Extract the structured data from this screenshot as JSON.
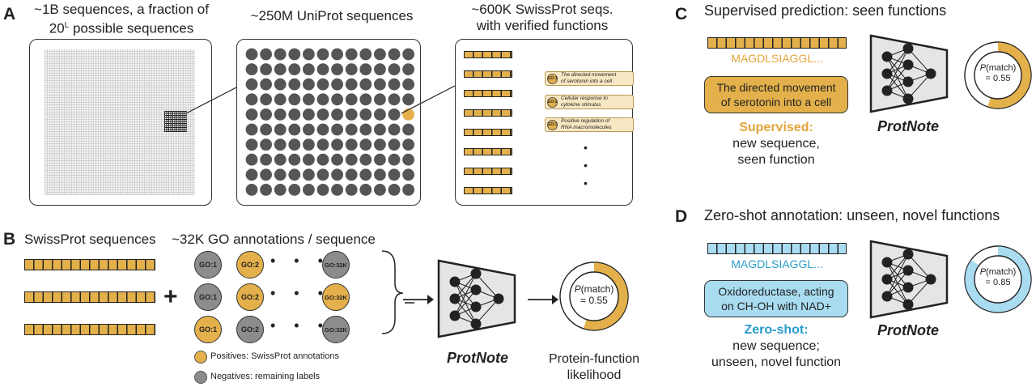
{
  "panel_a": {
    "letter": "A",
    "all_seq_line1": "~1B sequences, a fraction of",
    "all_seq_line2_prefix": "20",
    "all_seq_line2_sup": "L",
    "all_seq_line2_suffix": " possible sequences",
    "uniprot": "~250M UniProt sequences",
    "swissprot_line1": "~600K SwissProt seqs.",
    "swissprot_line2": "with verified functions",
    "go_examples": [
      {
        "id": "GO:1",
        "line1": "The directed movement",
        "line2": "of serotonin into a cell"
      },
      {
        "id": "GO:2",
        "line1": "Cellular response to",
        "line2": "cytokine stimulus"
      },
      {
        "id": "GO:3",
        "line1": "Positive regulation of",
        "line2": "RNA macromolecules"
      }
    ]
  },
  "panel_b": {
    "letter": "B",
    "swissprot_sequences": "SwissProt sequences",
    "go_annotations": "~32K GO annotations / sequence",
    "plus": "+",
    "rows": [
      [
        "GO:1",
        "GO:2",
        "GO:32K"
      ],
      [
        "GO:1",
        "GO:2",
        "GO:32K"
      ],
      [
        "GO:1",
        "GO:2",
        "GO:32K"
      ]
    ],
    "ellipsis": "• • • •",
    "legend_positive": "Positives: SwissProt annotations",
    "legend_negative": "Negatives: remaining labels",
    "model_name": "ProtNote",
    "p_label": "P",
    "p_suffix": "(match)",
    "p_value": "= 0.55",
    "output_line1": "Protein-function",
    "output_line2": "likelihood",
    "colors": {
      "positive": "#e3b04b",
      "negative": "#8c8c8c"
    }
  },
  "panel_c": {
    "letter": "C",
    "title": "Supervised prediction: seen functions",
    "sequence": "MAGDLSIAGGL...",
    "function_line1": "The directed movement",
    "function_line2": "of serotonin into a cell",
    "mode": "Supervised:",
    "desc_line1": "new sequence,",
    "desc_line2": "seen function",
    "model_name": "ProtNote",
    "p_label": "P",
    "p_suffix": "(match)",
    "p_value": "= 0.55",
    "color": "#e3b04b"
  },
  "panel_d": {
    "letter": "D",
    "title": "Zero-shot annotation: unseen, novel functions",
    "sequence": "MAGDLSIAGGL...",
    "function_line1": "Oxidoreductase, acting",
    "function_line2": "on CH-OH with NAD+",
    "mode": "Zero-shot:",
    "desc_line1": "new sequence;",
    "desc_line2": "unseen, novel function",
    "model_name": "ProtNote",
    "p_label": "P",
    "p_suffix": "(match)",
    "p_value": "= 0.85",
    "color": "#a9dcf1",
    "text_color": "#2a9bc9"
  }
}
